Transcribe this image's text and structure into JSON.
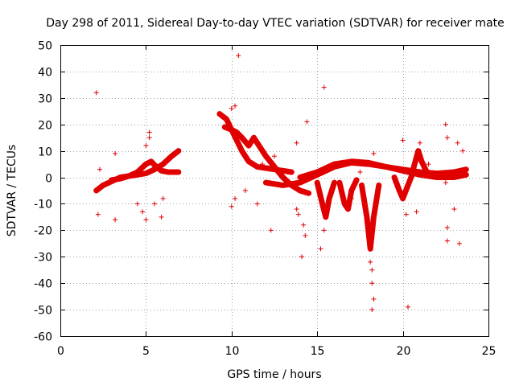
{
  "chart_data": {
    "type": "scatter",
    "title": "Day 298 of 2011, Sidereal Day-to-day VTEC variation (SDTVAR) for receiver mate",
    "xlabel": "GPS time / hours",
    "ylabel": "SDTVAR / TECUs",
    "xlim": [
      0,
      25
    ],
    "ylim": [
      -60,
      50
    ],
    "xticks": [
      0,
      5,
      10,
      15,
      20,
      25
    ],
    "yticks": [
      -60,
      -50,
      -40,
      -30,
      -20,
      -10,
      0,
      10,
      20,
      30,
      40,
      50
    ],
    "grid": true,
    "marker": "+",
    "color": "#e00000",
    "series": [
      {
        "name": "dense tracks",
        "curves": [
          [
            [
              2.1,
              -5
            ],
            [
              2.5,
              -3
            ],
            [
              3,
              -1.5
            ],
            [
              3.5,
              0
            ],
            [
              4,
              0.5
            ],
            [
              4.5,
              1
            ],
            [
              5,
              1.5
            ],
            [
              5.5,
              3
            ],
            [
              6,
              5
            ],
            [
              6.5,
              8
            ],
            [
              6.9,
              10
            ]
          ],
          [
            [
              3,
              -1
            ],
            [
              3.5,
              -0.5
            ],
            [
              4,
              0.5
            ],
            [
              4.5,
              2
            ],
            [
              5,
              5
            ],
            [
              5.3,
              6
            ],
            [
              5.6,
              4
            ],
            [
              5.9,
              2.5
            ],
            [
              6.3,
              2
            ],
            [
              6.9,
              2
            ]
          ],
          [
            [
              9.3,
              24
            ],
            [
              9.7,
              22
            ],
            [
              10,
              18
            ],
            [
              10.3,
              14
            ],
            [
              10.6,
              10
            ],
            [
              11,
              6
            ],
            [
              11.5,
              4
            ],
            [
              12,
              3.5
            ],
            [
              12.5,
              3
            ],
            [
              13,
              2.5
            ],
            [
              13.5,
              2
            ]
          ],
          [
            [
              9.6,
              19
            ],
            [
              10,
              18
            ],
            [
              10.3,
              17
            ],
            [
              10.6,
              15
            ],
            [
              11,
              12
            ],
            [
              11.3,
              15
            ],
            [
              11.5,
              13
            ],
            [
              12,
              8
            ],
            [
              12.5,
              4
            ],
            [
              13,
              0
            ],
            [
              13.5,
              -3
            ],
            [
              14,
              -5
            ],
            [
              14.5,
              -6
            ]
          ],
          [
            [
              12,
              -2
            ],
            [
              13,
              -3
            ],
            [
              14,
              -2
            ],
            [
              15,
              1
            ],
            [
              16,
              4
            ],
            [
              17,
              5.5
            ],
            [
              18,
              5
            ],
            [
              19,
              4
            ],
            [
              20,
              3
            ],
            [
              21,
              2
            ],
            [
              22,
              1.5
            ],
            [
              23,
              2
            ],
            [
              23.7,
              3
            ]
          ],
          [
            [
              14,
              0
            ],
            [
              15,
              2
            ],
            [
              16,
              5
            ],
            [
              17,
              6
            ],
            [
              18,
              5.5
            ],
            [
              19,
              4
            ],
            [
              20,
              2.5
            ],
            [
              21,
              1
            ],
            [
              22,
              0
            ],
            [
              23,
              0
            ],
            [
              23.7,
              1
            ]
          ],
          [
            [
              15,
              -2
            ],
            [
              15.3,
              -10
            ],
            [
              15.5,
              -15
            ],
            [
              15.7,
              -8
            ],
            [
              16,
              -2
            ]
          ],
          [
            [
              16.3,
              -2
            ],
            [
              16.6,
              -10
            ],
            [
              16.8,
              -12
            ],
            [
              17,
              -5
            ],
            [
              17.3,
              -1
            ]
          ],
          [
            [
              17.6,
              -3
            ],
            [
              17.9,
              -15
            ],
            [
              18.1,
              -27
            ],
            [
              18.3,
              -15
            ],
            [
              18.6,
              -3
            ]
          ],
          [
            [
              19.5,
              0
            ],
            [
              19.8,
              -5
            ],
            [
              20,
              -8
            ],
            [
              20.3,
              -3
            ],
            [
              20.6,
              2
            ]
          ],
          [
            [
              20.6,
              3
            ],
            [
              20.9,
              10
            ],
            [
              21.1,
              6
            ],
            [
              21.4,
              2
            ]
          ]
        ],
        "scatter": [
          [
            2.1,
            32
          ],
          [
            2.2,
            -14
          ],
          [
            2.3,
            3
          ],
          [
            3.2,
            -16
          ],
          [
            3.2,
            9
          ],
          [
            4.5,
            -10
          ],
          [
            4.8,
            -13
          ],
          [
            5,
            -16
          ],
          [
            5,
            12
          ],
          [
            5.2,
            15
          ],
          [
            5.2,
            17
          ],
          [
            5.5,
            -10
          ],
          [
            5.9,
            -15
          ],
          [
            6,
            -8
          ],
          [
            10,
            -11
          ],
          [
            10,
            26
          ],
          [
            10.2,
            27
          ],
          [
            10.4,
            46
          ],
          [
            10.2,
            -8
          ],
          [
            10.8,
            -5
          ],
          [
            11.5,
            -10
          ],
          [
            12.3,
            -20
          ],
          [
            13.8,
            -12
          ],
          [
            13.9,
            -14
          ],
          [
            13.8,
            13
          ],
          [
            14.1,
            -30
          ],
          [
            14.2,
            -18
          ],
          [
            14.3,
            -22
          ],
          [
            14.4,
            21
          ],
          [
            15.2,
            -27
          ],
          [
            15.4,
            34
          ],
          [
            15.4,
            -20
          ],
          [
            18.1,
            -32
          ],
          [
            18.2,
            -35
          ],
          [
            18.2,
            -40
          ],
          [
            18.3,
            -46
          ],
          [
            18.2,
            -50
          ],
          [
            18.3,
            9
          ],
          [
            20,
            14
          ],
          [
            20.3,
            -49
          ],
          [
            20.2,
            -14
          ],
          [
            20.8,
            -13
          ],
          [
            21,
            13
          ],
          [
            22.5,
            20
          ],
          [
            22.6,
            15
          ],
          [
            22.6,
            -19
          ],
          [
            22.6,
            -24
          ],
          [
            23.3,
            -25
          ],
          [
            23,
            -12
          ],
          [
            23.2,
            13
          ],
          [
            23.5,
            10
          ],
          [
            22.5,
            -2
          ],
          [
            21.5,
            5
          ],
          [
            19.8,
            -5
          ],
          [
            12.5,
            8
          ],
          [
            11.8,
            5
          ],
          [
            17,
            -8
          ],
          [
            17.5,
            2
          ]
        ]
      }
    ]
  }
}
